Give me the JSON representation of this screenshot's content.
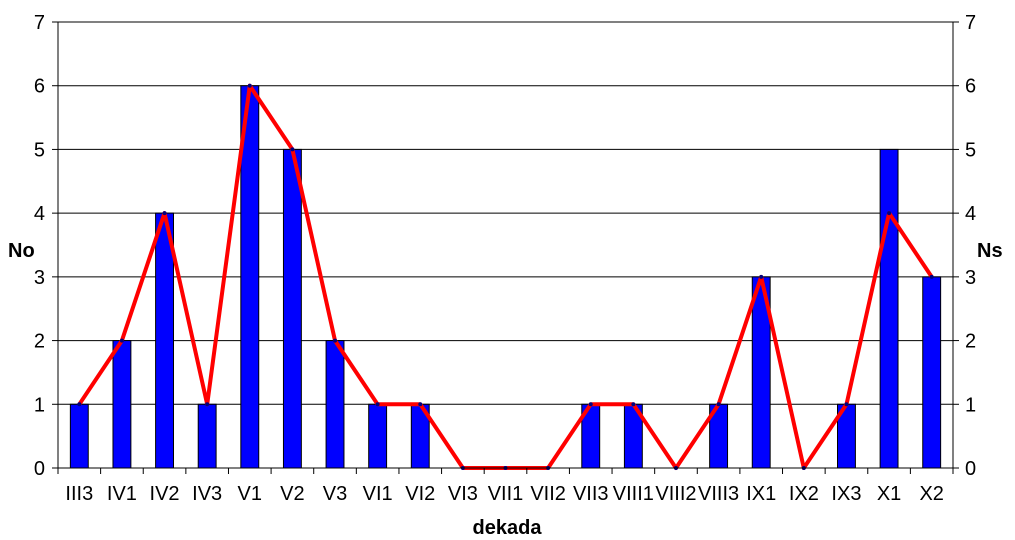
{
  "chart_data": {
    "type": "bar",
    "xlabel": "dekada",
    "ylabel_left": "No",
    "ylabel_right": "Ns",
    "ylim": [
      0,
      7
    ],
    "yticks": [
      0,
      1,
      2,
      3,
      4,
      5,
      6,
      7
    ],
    "grid": true,
    "categories": [
      "III3",
      "IV1",
      "IV2",
      "IV3",
      "V1",
      "V2",
      "V3",
      "VI1",
      "VI2",
      "VI3",
      "VII1",
      "VII2",
      "VII3",
      "VIII1",
      "VIII2",
      "VIII3",
      "IX1",
      "IX2",
      "IX3",
      "X1",
      "X2"
    ],
    "series": [
      {
        "name": "",
        "kind": "bar",
        "axis": "left",
        "color": "#0000FF",
        "values": [
          1,
          2,
          4,
          1,
          6,
          5,
          2,
          1,
          1,
          0,
          0,
          0,
          1,
          1,
          0,
          1,
          3,
          0,
          1,
          5,
          3
        ]
      },
      {
        "name": "",
        "kind": "line",
        "axis": "right",
        "color": "#FF0000",
        "values": [
          1,
          2,
          4,
          1,
          6,
          5,
          2,
          1,
          1,
          0,
          0,
          0,
          1,
          1,
          0,
          1,
          3,
          0,
          1,
          4,
          3
        ]
      }
    ]
  }
}
